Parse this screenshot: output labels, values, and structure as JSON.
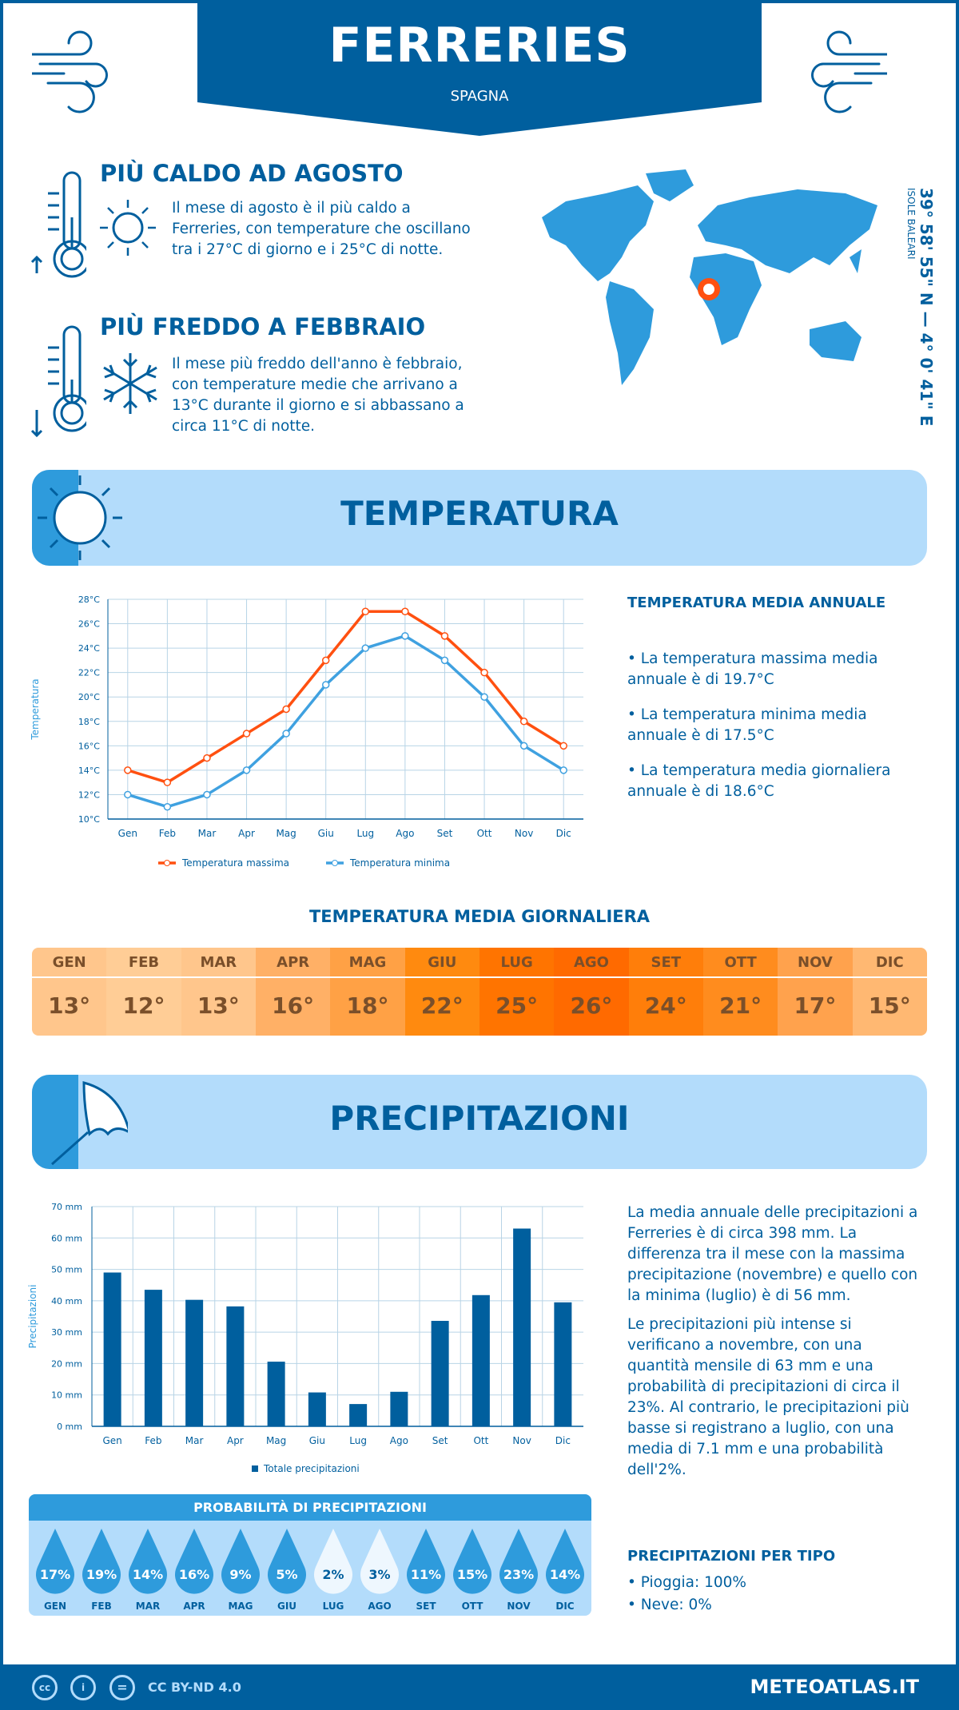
{
  "header": {
    "title": "FERRERIES",
    "country": "SPAGNA"
  },
  "hot": {
    "title": "PIÙ CALDO AD AGOSTO",
    "text": "Il mese di agosto è il più caldo a Ferreries, con temperature che oscillano tra i 27°C di giorno e i 25°C di notte."
  },
  "cold": {
    "title": "PIÙ FREDDO A FEBBRAIO",
    "text": "Il mese più freddo dell'anno è febbraio, con temperature medie che arrivano a 13°C durante il giorno e si abbassano a circa 11°C di notte."
  },
  "location": {
    "coords": "39° 58' 55\" N — 4° 0' 41\" E",
    "region": "ISOLE BALEARI"
  },
  "colors": {
    "primary": "#005f9e",
    "accent": "#2e9bdc",
    "light": "#b3dcfb",
    "max": "#ff5010",
    "min": "#3fa1e0"
  },
  "temp_section": {
    "title": "TEMPERATURA",
    "annual_title": "TEMPERATURA MEDIA ANNUALE",
    "bullets": [
      "• La temperatura massima media annuale è di 19.7°C",
      "• La temperatura minima media annuale è di 17.5°C",
      "• La temperatura media giornaliera annuale è di 18.6°C"
    ],
    "daily_title": "TEMPERATURA MEDIA GIORNALIERA"
  },
  "daily": {
    "months": [
      "GEN",
      "FEB",
      "MAR",
      "APR",
      "MAG",
      "GIU",
      "LUG",
      "AGO",
      "SET",
      "OTT",
      "NOV",
      "DIC"
    ],
    "values": [
      "13°",
      "12°",
      "13°",
      "16°",
      "18°",
      "22°",
      "25°",
      "26°",
      "24°",
      "21°",
      "17°",
      "15°"
    ],
    "colors": [
      "#ffc68c",
      "#ffcd96",
      "#ffc68c",
      "#ffb066",
      "#ffa145",
      "#ff8a0f",
      "#ff7400",
      "#ff6a00",
      "#ff7e0a",
      "#ff8c1e",
      "#ffa24d",
      "#ffb872"
    ]
  },
  "chart_data": [
    {
      "type": "line",
      "ylabel": "Temperatura",
      "categories": [
        "Gen",
        "Feb",
        "Mar",
        "Apr",
        "Mag",
        "Giu",
        "Lug",
        "Ago",
        "Set",
        "Ott",
        "Nov",
        "Dic"
      ],
      "ylim": [
        10,
        28
      ],
      "yticks": [
        "10°C",
        "12°C",
        "14°C",
        "16°C",
        "18°C",
        "20°C",
        "22°C",
        "24°C",
        "26°C",
        "28°C"
      ],
      "grid": true,
      "legend": "bottom",
      "series": [
        {
          "name": "Temperatura massima",
          "values": [
            14,
            13,
            15,
            17,
            19,
            23,
            27,
            27,
            25,
            22,
            18,
            16
          ]
        },
        {
          "name": "Temperatura minima",
          "values": [
            12,
            11,
            12,
            14,
            17,
            21,
            24,
            25,
            23,
            20,
            16,
            14
          ]
        }
      ]
    },
    {
      "type": "bar",
      "ylabel": "Precipitazioni",
      "categories": [
        "Gen",
        "Feb",
        "Mar",
        "Apr",
        "Mag",
        "Giu",
        "Lug",
        "Ago",
        "Set",
        "Ott",
        "Nov",
        "Dic"
      ],
      "ylim": [
        0,
        70
      ],
      "yticks": [
        "0 mm",
        "10 mm",
        "20 mm",
        "30 mm",
        "40 mm",
        "50 mm",
        "60 mm",
        "70 mm"
      ],
      "grid": true,
      "legend": "bottom",
      "series": [
        {
          "name": "Totale precipitazioni",
          "values": [
            49,
            43.5,
            40.3,
            38.2,
            20.6,
            10.8,
            7.1,
            11,
            33.6,
            41.8,
            63,
            39.5
          ]
        }
      ]
    }
  ],
  "precip_section": {
    "title": "PRECIPITAZIONI",
    "p1": "La media annuale delle precipitazioni a Ferreries è di circa 398 mm. La differenza tra il mese con la massima precipitazione (novembre) e quello con la minima (luglio) è di 56 mm.",
    "p2": "Le precipitazioni più intense si verificano a novembre, con una quantità mensile di 63 mm e una probabilità di precipitazioni di circa il 23%. Al contrario, le precipitazioni più basse si registrano a luglio, con una media di 7.1 mm e una probabilità dell'2%.",
    "type_title": "PRECIPITAZIONI PER TIPO",
    "types": [
      "• Pioggia: 100%",
      "• Neve: 0%"
    ]
  },
  "probability": {
    "title": "PROBABILITÀ DI PRECIPITAZIONI",
    "months": [
      "GEN",
      "FEB",
      "MAR",
      "APR",
      "MAG",
      "GIU",
      "LUG",
      "AGO",
      "SET",
      "OTT",
      "NOV",
      "DIC"
    ],
    "values": [
      "17%",
      "19%",
      "14%",
      "16%",
      "9%",
      "5%",
      "2%",
      "3%",
      "11%",
      "15%",
      "23%",
      "14%"
    ]
  },
  "footer": {
    "license": "CC BY-ND 4.0",
    "brand": "METEOATLAS.IT",
    "cc": "cc",
    "eq": "="
  }
}
